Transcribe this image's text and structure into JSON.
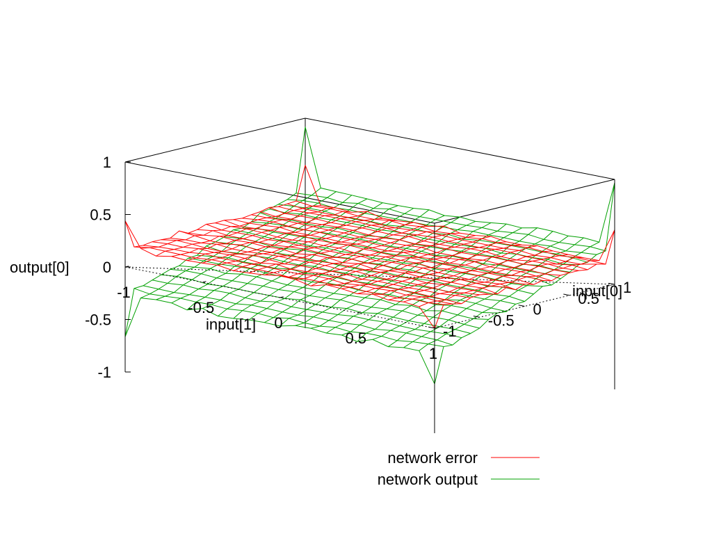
{
  "chart_data": {
    "type": "surface3d",
    "title": "",
    "axes": {
      "x": {
        "label": "input[1]",
        "range": [
          -1,
          1
        ],
        "ticks": [
          -1,
          -0.5,
          0,
          0.5,
          1
        ],
        "tick_labels": [
          "-1",
          "-0.5",
          "0",
          "0.5",
          "1"
        ]
      },
      "y": {
        "label": "input[0]",
        "range": [
          -1,
          1
        ],
        "ticks": [
          -1,
          -0.5,
          0,
          0.5,
          1
        ],
        "tick_labels": [
          "-1",
          "-0.5",
          "0",
          "0.5",
          "1"
        ]
      },
      "z": {
        "label": "output[0]",
        "range": [
          -1,
          1
        ],
        "ticks": [
          -1,
          -0.5,
          0,
          0.5,
          1
        ],
        "tick_labels": [
          "-1",
          "-0.5",
          "0",
          "0.5",
          "1"
        ]
      }
    },
    "grid_resolution": 21,
    "grid": false,
    "legend_position": "bottom-right",
    "series": [
      {
        "name": "network error",
        "color": "#ff0000",
        "surface": "bilinear",
        "corners": {
          "x-1_y-1": 0.48,
          "x1_y-1": 0.0,
          "x-1_y1": 0.55,
          "x1_y1": 0.5
        },
        "base_value": 0.2,
        "corner_spikes": [
          {
            "x": -1,
            "y": -1,
            "z": 0.48
          },
          {
            "x": -1,
            "y": 1,
            "z": 0.55
          },
          {
            "x": 1,
            "y": -1,
            "z": 0.0
          },
          {
            "x": 1,
            "y": 1,
            "z": 0.5
          }
        ]
      },
      {
        "name": "network output",
        "color": "#00a000",
        "surface": "bilinear",
        "corners": {
          "x-1_y-1": -0.65,
          "x1_y-1": -0.55,
          "x-1_y1": 0.9,
          "x1_y1": 0.95
        },
        "corner_spikes": [
          {
            "x": -1,
            "y": -1,
            "z": -0.65
          },
          {
            "x": -1,
            "y": 1,
            "z": 0.9
          },
          {
            "x": 1,
            "y": -1,
            "z": -0.55
          },
          {
            "x": 1,
            "y": 1,
            "z": 0.95
          }
        ]
      }
    ]
  }
}
